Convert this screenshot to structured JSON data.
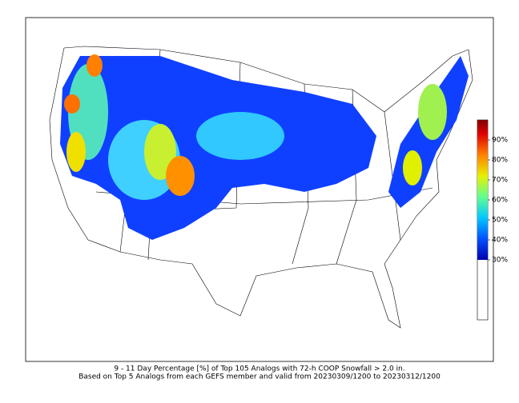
{
  "map": {
    "caption": [
      "9 - 11 Day Percentage [%] of Top 105 Analogs with 72-h COOP Snowfall > 2.0 in.",
      "Based on Top 5 Analogs from each GEFS member and valid from 20230309/1200 to 20230312/1200"
    ],
    "colorbar": {
      "lim": [
        0,
        100
      ],
      "colormap_range": [
        30,
        100
      ],
      "ticks": [
        {
          "value": 90,
          "label": "90%"
        },
        {
          "value": 80,
          "label": "80%"
        },
        {
          "value": 70,
          "label": "70%"
        },
        {
          "value": 60,
          "label": "60%"
        },
        {
          "value": 50,
          "label": "50%"
        },
        {
          "value": 40,
          "label": "40%"
        },
        {
          "value": 30,
          "label": "30%"
        }
      ]
    }
  }
}
